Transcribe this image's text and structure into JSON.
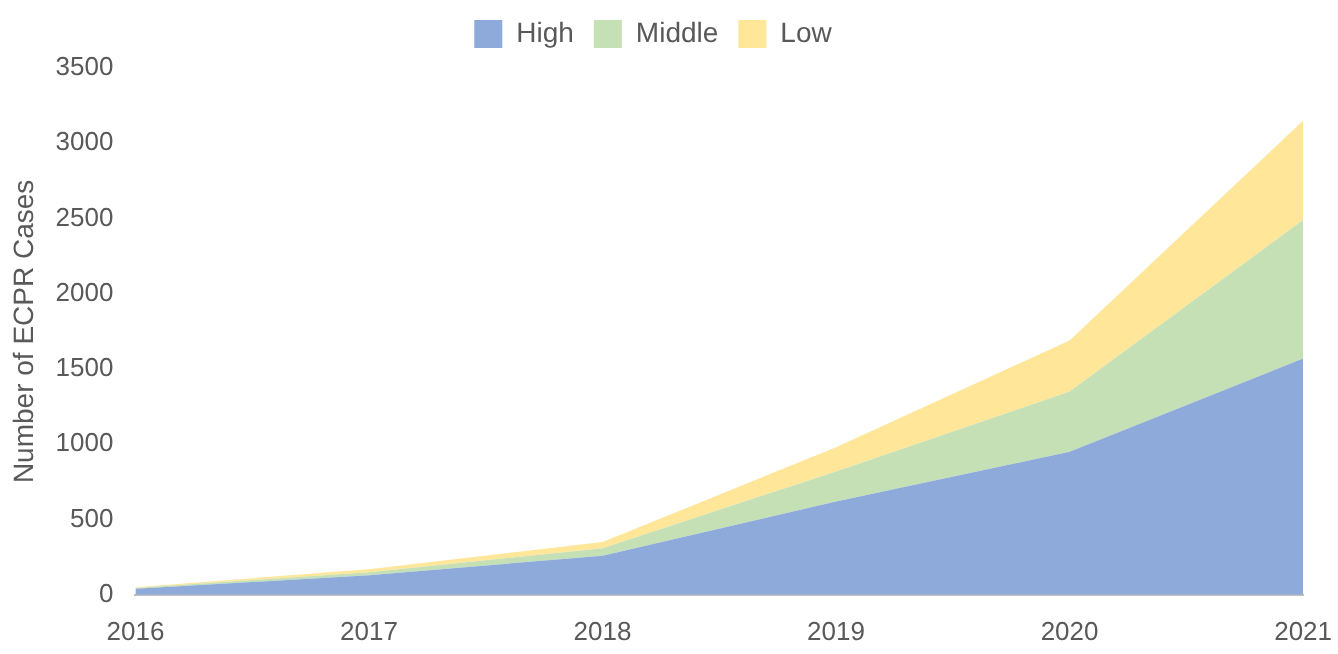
{
  "chart_data": {
    "type": "area",
    "ylabel": "Number of ECPR Cases",
    "categories": [
      "2016",
      "2017",
      "2018",
      "2019",
      "2020",
      "2021"
    ],
    "stacked": true,
    "series": [
      {
        "name": "High",
        "color": "#8eaadb",
        "values": [
          40,
          130,
          260,
          620,
          950,
          1570
        ]
      },
      {
        "name": "Middle",
        "color": "#c5e0b4",
        "values": [
          5,
          20,
          50,
          200,
          400,
          920
        ]
      },
      {
        "name": "Low",
        "color": "#ffe699",
        "values": [
          5,
          20,
          40,
          160,
          340,
          660
        ]
      }
    ],
    "ylim": [
      0,
      3500
    ],
    "yticks": [
      0,
      500,
      1000,
      1500,
      2000,
      2500,
      3000,
      3500
    ],
    "grid": false,
    "legend": "top",
    "marker": "none"
  }
}
